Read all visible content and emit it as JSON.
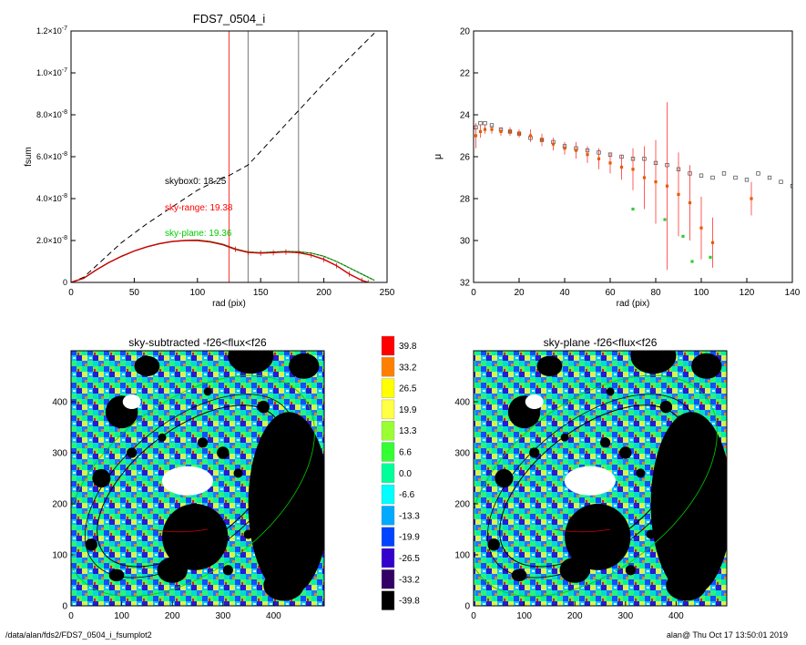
{
  "footer": {
    "path": "/data/alan/fds2/FDS7_0504_i_fsumplot2",
    "user_time": "alan@  Thu Oct 17 13:50:01 2019"
  },
  "chart_data": [
    {
      "type": "line",
      "title": "FDS7_0504_i",
      "xlabel": "rad (pix)",
      "ylabel": "fsum",
      "xlim": [
        0,
        250
      ],
      "ylim": [
        0,
        1.2e-07
      ],
      "x_ticks": [
        "0",
        "50",
        "100",
        "150",
        "200",
        "250"
      ],
      "y_ticks": [
        {
          "value": 0,
          "label": "0"
        },
        {
          "value": 2e-08,
          "label": "2.0×10",
          "exp": "-8"
        },
        {
          "value": 4e-08,
          "label": "4.0×10",
          "exp": "-8"
        },
        {
          "value": 6e-08,
          "label": "6.0×10",
          "exp": "-8"
        },
        {
          "value": 8e-08,
          "label": "8.0×10",
          "exp": "-8"
        },
        {
          "value": 1e-07,
          "label": "1.0×10",
          "exp": "-7"
        },
        {
          "value": 1.2e-07,
          "label": "1.2×10",
          "exp": "-7"
        }
      ],
      "vlines": [
        {
          "x": 125,
          "color": "#ff0000"
        },
        {
          "x": 140,
          "color": "#555555"
        },
        {
          "x": 180,
          "color": "#555555"
        }
      ],
      "annotations": [
        {
          "text": "skybox0: 18.25",
          "color": "#000000"
        },
        {
          "text": "sky-range: 19.38",
          "color": "#ff0000"
        },
        {
          "text": "sky-plane: 19.36",
          "color": "#00cc00"
        }
      ],
      "series": [
        {
          "style": "dashed",
          "color": "#000000",
          "x": [
            0,
            10,
            20,
            40,
            60,
            80,
            100,
            120,
            125,
            140,
            160,
            180,
            200,
            220,
            240
          ],
          "y": [
            0,
            2.5e-09,
            8e-09,
            1.9e-08,
            2.8e-08,
            3.6e-08,
            4.4e-08,
            5e-08,
            5.1e-08,
            5.6e-08,
            6.9e-08,
            8.2e-08,
            9.5e-08,
            1.07e-07,
            1.19e-07
          ]
        },
        {
          "style": "solid",
          "color": "#006400",
          "x": [
            0,
            10,
            20,
            30,
            40,
            50,
            60,
            70,
            80,
            90,
            100,
            110,
            120,
            130,
            140,
            150,
            160,
            170,
            180,
            190,
            200,
            210,
            220,
            230,
            240
          ],
          "y": [
            0,
            2e-09,
            6e-09,
            9.5e-09,
            1.25e-08,
            1.5e-08,
            1.7e-08,
            1.85e-08,
            1.95e-08,
            2e-08,
            2.02e-08,
            1.95e-08,
            1.82e-08,
            1.6e-08,
            1.45e-08,
            1.42e-08,
            1.45e-08,
            1.48e-08,
            1.46e-08,
            1.4e-08,
            1.25e-08,
            1e-08,
            7e-09,
            4e-09,
            1e-09
          ]
        },
        {
          "style": "error",
          "color": "#cc0000",
          "x": [
            0,
            10,
            20,
            30,
            40,
            50,
            60,
            70,
            80,
            90,
            100,
            110,
            120,
            130,
            140,
            150,
            160,
            170,
            180,
            190,
            200,
            210,
            220,
            230,
            235
          ],
          "y": [
            0,
            2e-09,
            6e-09,
            9.5e-09,
            1.25e-08,
            1.5e-08,
            1.7e-08,
            1.85e-08,
            1.95e-08,
            2e-08,
            2e-08,
            1.93e-08,
            1.8e-08,
            1.58e-08,
            1.43e-08,
            1.4e-08,
            1.42e-08,
            1.45e-08,
            1.42e-08,
            1.3e-08,
            1.1e-08,
            8e-09,
            4e-09,
            1e-09,
            0
          ]
        }
      ]
    },
    {
      "type": "scatter",
      "xlabel": "rad (pix)",
      "ylabel": "μ",
      "xlim": [
        0,
        140
      ],
      "ylim": [
        32,
        20
      ],
      "x_ticks": [
        "0",
        "20",
        "40",
        "60",
        "80",
        "100",
        "120",
        "140"
      ],
      "y_ticks": [
        "20",
        "22",
        "24",
        "26",
        "28",
        "30",
        "32"
      ],
      "series": [
        {
          "marker": "square-open",
          "color": "#000000",
          "x": [
            1,
            3,
            5,
            8,
            12,
            16,
            20,
            25,
            30,
            35,
            40,
            45,
            50,
            55,
            60,
            65,
            70,
            75,
            80,
            85,
            90,
            95,
            100,
            105,
            110,
            115,
            120,
            125,
            130,
            135,
            140
          ],
          "y": [
            24.6,
            24.4,
            24.4,
            24.5,
            24.7,
            24.8,
            24.9,
            25.1,
            25.2,
            25.3,
            25.5,
            25.6,
            25.7,
            25.8,
            25.9,
            26.0,
            26.1,
            26.1,
            26.3,
            26.4,
            26.6,
            26.8,
            26.9,
            27.0,
            26.8,
            27.0,
            27.1,
            26.8,
            27.0,
            27.2,
            27.4
          ]
        },
        {
          "marker": "dot",
          "color": "#e65c00",
          "x": [
            1,
            3,
            5,
            8,
            12,
            16,
            20,
            25,
            30,
            35,
            40,
            45,
            50,
            55,
            60,
            65,
            70,
            75,
            80,
            85,
            90,
            95,
            100,
            105,
            122
          ],
          "y": [
            25.0,
            24.8,
            24.7,
            24.7,
            24.8,
            24.8,
            24.9,
            25.0,
            25.2,
            25.4,
            25.6,
            25.7,
            25.9,
            26.1,
            26.3,
            26.5,
            26.6,
            27.0,
            27.2,
            27.4,
            27.8,
            28.2,
            29.4,
            30.1,
            28.0
          ],
          "err": [
            0.6,
            0.3,
            0.2,
            0.2,
            0.2,
            0.2,
            0.2,
            0.3,
            0.3,
            0.3,
            0.3,
            0.4,
            0.4,
            0.5,
            0.5,
            0.6,
            1.0,
            1.5,
            2.0,
            4.0,
            2.0,
            1.8,
            1.5,
            1.2,
            0.8
          ]
        },
        {
          "marker": "dot",
          "color": "#33cc33",
          "x": [
            70,
            84,
            92,
            96,
            104
          ],
          "y": [
            28.5,
            29.0,
            29.8,
            31.0,
            30.8
          ]
        }
      ]
    },
    {
      "type": "heatmap",
      "title": "sky-subtracted -f26<flux<f26",
      "xlim": [
        0,
        500
      ],
      "ylim": [
        0,
        500
      ],
      "x_ticks": [
        "0",
        "100",
        "200",
        "300",
        "400"
      ],
      "y_ticks": [
        "0",
        "100",
        "200",
        "300",
        "400"
      ]
    },
    {
      "type": "heatmap",
      "title": "sky-plane -f26<flux<f26",
      "xlim": [
        0,
        500
      ],
      "ylim": [
        0,
        500
      ],
      "x_ticks": [
        "0",
        "100",
        "200",
        "300",
        "400"
      ],
      "y_ticks": [
        "0",
        "100",
        "200",
        "300",
        "400"
      ]
    },
    {
      "type": "colorbar",
      "levels": [
        {
          "label": "39.8",
          "color": "#ff0000"
        },
        {
          "label": "33.2",
          "color": "#ff8000"
        },
        {
          "label": "26.5",
          "color": "#ffff00"
        },
        {
          "label": "19.9",
          "color": "#ffff44"
        },
        {
          "label": "13.3",
          "color": "#99ff33"
        },
        {
          "label": "6.6",
          "color": "#33ff33"
        },
        {
          "label": "0.0",
          "color": "#00ff99"
        },
        {
          "label": "-6.6",
          "color": "#00ffff"
        },
        {
          "label": "-13.3",
          "color": "#00aaff"
        },
        {
          "label": "-19.9",
          "color": "#0044ff"
        },
        {
          "label": "-26.5",
          "color": "#3300cc"
        },
        {
          "label": "-33.2",
          "color": "#330066"
        },
        {
          "label": "-39.8",
          "color": "#000000"
        }
      ]
    }
  ]
}
